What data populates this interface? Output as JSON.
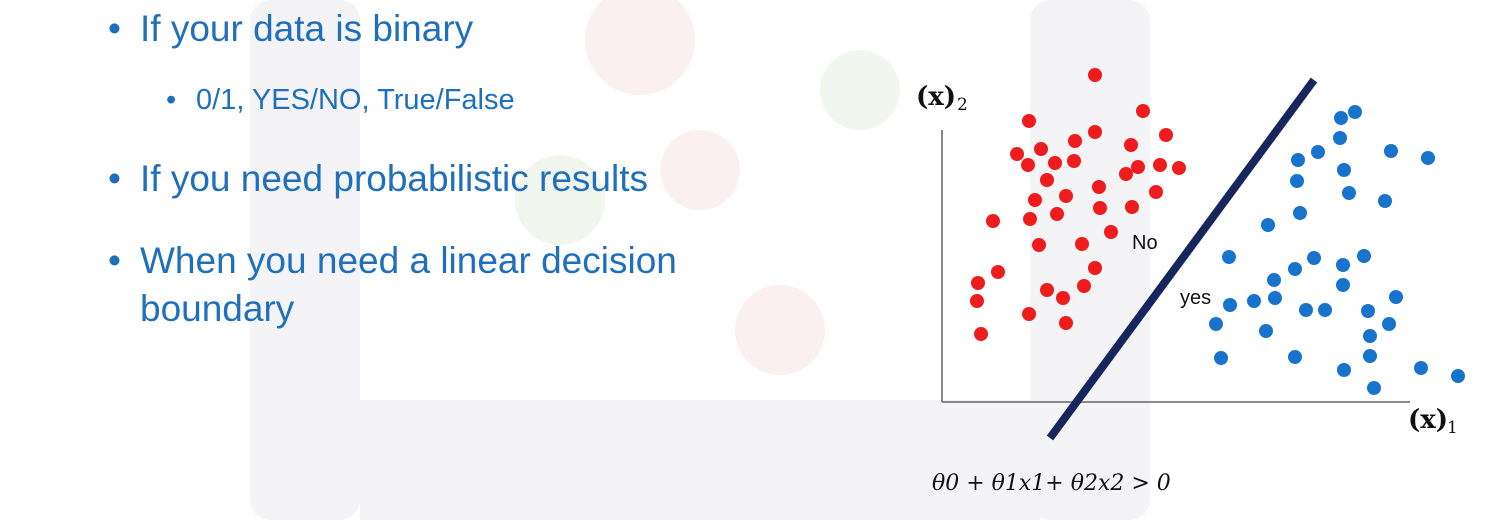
{
  "bullets": {
    "item1": "If your data is binary",
    "item1_sub": "0/1, YES/NO,  True/False",
    "item2": "If you need probabilistic results",
    "item3_line1": "When you need a linear decision",
    "item3_line2": "boundary"
  },
  "diagram": {
    "y_axis_label": "(x)",
    "y_axis_sub": "2",
    "x_axis_label": "(x)",
    "x_axis_sub": "1",
    "region_no": "No",
    "region_yes": "yes",
    "equation": "θ0 + θ1x1+ θ2x2 > 0",
    "colors": {
      "red_class": "#ee1c1c",
      "blue_class": "#1873cc",
      "boundary": "#17275e",
      "axis": "#8a8a8a",
      "text": "#1f6fbd"
    }
  }
}
